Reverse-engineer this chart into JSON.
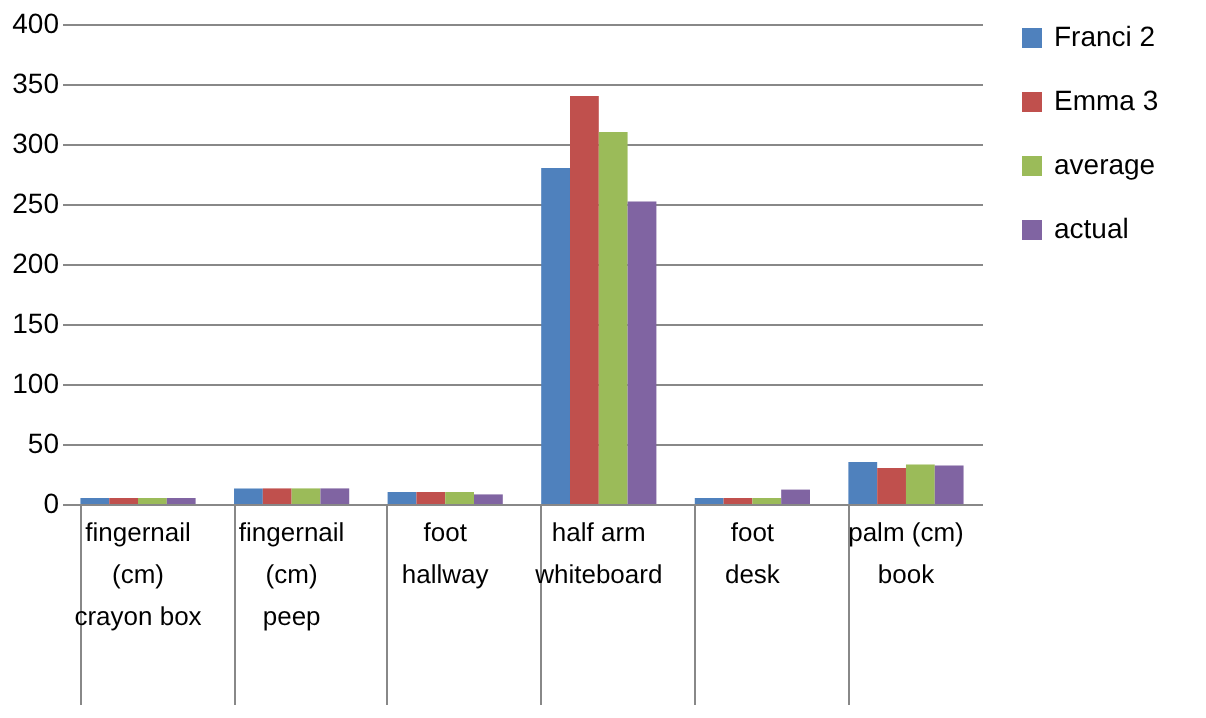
{
  "chart_data": {
    "type": "bar",
    "categories": [
      "fingernail (cm)\ncrayon box",
      "fingernail (cm)\npeep",
      "foot\nhallway",
      "half arm\nwhiteboard",
      "foot\ndesk",
      "palm (cm)\nbook"
    ],
    "series": [
      {
        "name": "Franci 2",
        "color": "#4f81bd",
        "values": [
          5,
          13,
          10,
          280,
          5,
          35
        ]
      },
      {
        "name": "Emma 3",
        "color": "#c0504d",
        "values": [
          5,
          13,
          10,
          340,
          5,
          30
        ]
      },
      {
        "name": "average",
        "color": "#9bbb59",
        "values": [
          5,
          13,
          10,
          310,
          5,
          33
        ]
      },
      {
        "name": "actual",
        "color": "#8064a2",
        "values": [
          5,
          13,
          8,
          252,
          12,
          32
        ]
      }
    ],
    "ylim": [
      0,
      400
    ],
    "yticks": [
      0,
      50,
      100,
      150,
      200,
      250,
      300,
      350,
      400
    ],
    "grid": "y",
    "legend": "right"
  }
}
